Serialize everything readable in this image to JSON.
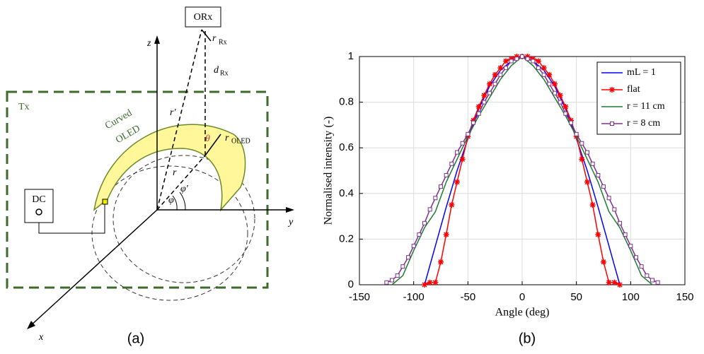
{
  "diagram": {
    "orx": "ORx",
    "z": "z",
    "r_rx": "r",
    "r_rx_sub": "Rx",
    "d_rx": "d",
    "d_rx_sub": "Rx",
    "tx": "Tx",
    "curved": "Curved",
    "oled": "OLED",
    "r_prime": "r'",
    "theta": "θ",
    "r_oled": "r",
    "r_oled_sub": "OLED",
    "r": "r",
    "phi_prime": "φ'",
    "phi": "φ",
    "dc": "DC",
    "y": "y",
    "x": "x",
    "caption_a": "(a)",
    "caption_b": "(b)"
  },
  "chart_data": {
    "type": "line",
    "xlabel": "Angle (deg)",
    "ylabel": "Normalised intensity (-)",
    "xlim": [
      -150,
      150
    ],
    "xticks": [
      -150,
      -100,
      -50,
      0,
      50,
      100,
      150
    ],
    "ylim": [
      0,
      1
    ],
    "yticks": [
      0,
      0.2,
      0.4,
      0.6,
      0.8,
      1
    ],
    "grid": true,
    "legend": "top-right",
    "series": [
      {
        "name": "mL = 1",
        "color": "#0000ff",
        "marker": "none",
        "x": [
          -90,
          -80,
          -70,
          -60,
          -50,
          -40,
          -30,
          -20,
          -10,
          0,
          10,
          20,
          30,
          40,
          50,
          60,
          70,
          80,
          90
        ],
        "values": [
          0,
          0.17,
          0.34,
          0.5,
          0.64,
          0.77,
          0.87,
          0.94,
          0.98,
          1,
          0.98,
          0.94,
          0.87,
          0.77,
          0.64,
          0.5,
          0.34,
          0.17,
          0
        ]
      },
      {
        "name": "flat",
        "color": "#ff0000",
        "marker": "star",
        "x": [
          -90,
          -85,
          -80,
          -75,
          -70,
          -65,
          -60,
          -55,
          -50,
          -45,
          -40,
          -35,
          -30,
          -25,
          -20,
          -15,
          -10,
          -5,
          0,
          5,
          10,
          15,
          20,
          25,
          30,
          35,
          40,
          45,
          50,
          55,
          60,
          65,
          70,
          75,
          80,
          85,
          90
        ],
        "values": [
          0,
          0.01,
          0.01,
          0.1,
          0.22,
          0.35,
          0.45,
          0.55,
          0.65,
          0.72,
          0.78,
          0.83,
          0.88,
          0.92,
          0.95,
          0.98,
          0.99,
          1,
          1,
          1,
          0.99,
          0.98,
          0.95,
          0.92,
          0.88,
          0.83,
          0.78,
          0.72,
          0.65,
          0.55,
          0.45,
          0.35,
          0.22,
          0.1,
          0.01,
          0.01,
          0
        ]
      },
      {
        "name": "r = 11 cm",
        "color": "#1e7b32",
        "marker": "none",
        "x": [
          -120,
          -110,
          -100,
          -90,
          -80,
          -70,
          -60,
          -50,
          -40,
          -30,
          -20,
          -10,
          0,
          10,
          20,
          30,
          40,
          50,
          60,
          70,
          80,
          90,
          100,
          110,
          120
        ],
        "values": [
          0,
          0.04,
          0.15,
          0.25,
          0.32,
          0.45,
          0.55,
          0.65,
          0.74,
          0.82,
          0.9,
          0.96,
          1,
          0.96,
          0.9,
          0.82,
          0.74,
          0.65,
          0.55,
          0.45,
          0.32,
          0.25,
          0.15,
          0.04,
          0
        ]
      },
      {
        "name": "r = 8 cm",
        "color": "#7e2f8e",
        "marker": "square",
        "x": [
          -125,
          -120,
          -115,
          -110,
          -105,
          -100,
          -95,
          -90,
          -85,
          -80,
          -75,
          -70,
          -65,
          -60,
          -55,
          -50,
          -45,
          -40,
          -35,
          -30,
          -25,
          -20,
          -15,
          -10,
          -5,
          0,
          5,
          10,
          15,
          20,
          25,
          30,
          35,
          40,
          45,
          50,
          55,
          60,
          65,
          70,
          75,
          80,
          85,
          90,
          95,
          100,
          105,
          110,
          115,
          120,
          125
        ],
        "values": [
          0.01,
          0.02,
          0.04,
          0.08,
          0.12,
          0.17,
          0.22,
          0.27,
          0.33,
          0.38,
          0.43,
          0.48,
          0.53,
          0.58,
          0.62,
          0.66,
          0.71,
          0.75,
          0.8,
          0.84,
          0.88,
          0.92,
          0.95,
          0.98,
          0.99,
          1,
          0.99,
          0.98,
          0.95,
          0.92,
          0.88,
          0.84,
          0.8,
          0.75,
          0.71,
          0.66,
          0.62,
          0.58,
          0.53,
          0.48,
          0.43,
          0.38,
          0.33,
          0.27,
          0.22,
          0.17,
          0.12,
          0.08,
          0.04,
          0.02,
          0.01
        ]
      }
    ]
  }
}
